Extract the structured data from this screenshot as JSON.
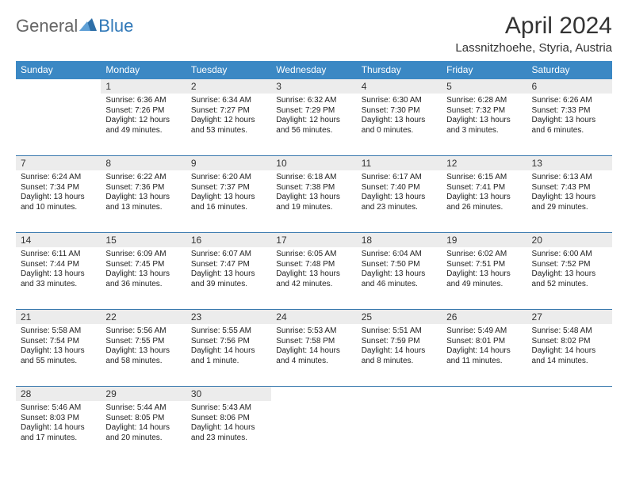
{
  "logo": {
    "text1": "General",
    "text2": "Blue"
  },
  "title": "April 2024",
  "location": "Lassnitzhoehe, Styria, Austria",
  "weekdays": [
    "Sunday",
    "Monday",
    "Tuesday",
    "Wednesday",
    "Thursday",
    "Friday",
    "Saturday"
  ],
  "colors": {
    "header_bg": "#3b88c4",
    "header_text": "#ffffff",
    "daynum_bg": "#ececec",
    "row_border": "#3b7aae",
    "body_text": "#222222"
  },
  "font": {
    "family": "Arial",
    "day_text_pt": 10,
    "header_pt": 12,
    "title_pt": 30,
    "location_pt": 15
  },
  "weeks": [
    [
      null,
      {
        "n": "1",
        "sr": "6:36 AM",
        "ss": "7:26 PM",
        "dl": "12 hours and 49 minutes."
      },
      {
        "n": "2",
        "sr": "6:34 AM",
        "ss": "7:27 PM",
        "dl": "12 hours and 53 minutes."
      },
      {
        "n": "3",
        "sr": "6:32 AM",
        "ss": "7:29 PM",
        "dl": "12 hours and 56 minutes."
      },
      {
        "n": "4",
        "sr": "6:30 AM",
        "ss": "7:30 PM",
        "dl": "13 hours and 0 minutes."
      },
      {
        "n": "5",
        "sr": "6:28 AM",
        "ss": "7:32 PM",
        "dl": "13 hours and 3 minutes."
      },
      {
        "n": "6",
        "sr": "6:26 AM",
        "ss": "7:33 PM",
        "dl": "13 hours and 6 minutes."
      }
    ],
    [
      {
        "n": "7",
        "sr": "6:24 AM",
        "ss": "7:34 PM",
        "dl": "13 hours and 10 minutes."
      },
      {
        "n": "8",
        "sr": "6:22 AM",
        "ss": "7:36 PM",
        "dl": "13 hours and 13 minutes."
      },
      {
        "n": "9",
        "sr": "6:20 AM",
        "ss": "7:37 PM",
        "dl": "13 hours and 16 minutes."
      },
      {
        "n": "10",
        "sr": "6:18 AM",
        "ss": "7:38 PM",
        "dl": "13 hours and 19 minutes."
      },
      {
        "n": "11",
        "sr": "6:17 AM",
        "ss": "7:40 PM",
        "dl": "13 hours and 23 minutes."
      },
      {
        "n": "12",
        "sr": "6:15 AM",
        "ss": "7:41 PM",
        "dl": "13 hours and 26 minutes."
      },
      {
        "n": "13",
        "sr": "6:13 AM",
        "ss": "7:43 PM",
        "dl": "13 hours and 29 minutes."
      }
    ],
    [
      {
        "n": "14",
        "sr": "6:11 AM",
        "ss": "7:44 PM",
        "dl": "13 hours and 33 minutes."
      },
      {
        "n": "15",
        "sr": "6:09 AM",
        "ss": "7:45 PM",
        "dl": "13 hours and 36 minutes."
      },
      {
        "n": "16",
        "sr": "6:07 AM",
        "ss": "7:47 PM",
        "dl": "13 hours and 39 minutes."
      },
      {
        "n": "17",
        "sr": "6:05 AM",
        "ss": "7:48 PM",
        "dl": "13 hours and 42 minutes."
      },
      {
        "n": "18",
        "sr": "6:04 AM",
        "ss": "7:50 PM",
        "dl": "13 hours and 46 minutes."
      },
      {
        "n": "19",
        "sr": "6:02 AM",
        "ss": "7:51 PM",
        "dl": "13 hours and 49 minutes."
      },
      {
        "n": "20",
        "sr": "6:00 AM",
        "ss": "7:52 PM",
        "dl": "13 hours and 52 minutes."
      }
    ],
    [
      {
        "n": "21",
        "sr": "5:58 AM",
        "ss": "7:54 PM",
        "dl": "13 hours and 55 minutes."
      },
      {
        "n": "22",
        "sr": "5:56 AM",
        "ss": "7:55 PM",
        "dl": "13 hours and 58 minutes."
      },
      {
        "n": "23",
        "sr": "5:55 AM",
        "ss": "7:56 PM",
        "dl": "14 hours and 1 minute."
      },
      {
        "n": "24",
        "sr": "5:53 AM",
        "ss": "7:58 PM",
        "dl": "14 hours and 4 minutes."
      },
      {
        "n": "25",
        "sr": "5:51 AM",
        "ss": "7:59 PM",
        "dl": "14 hours and 8 minutes."
      },
      {
        "n": "26",
        "sr": "5:49 AM",
        "ss": "8:01 PM",
        "dl": "14 hours and 11 minutes."
      },
      {
        "n": "27",
        "sr": "5:48 AM",
        "ss": "8:02 PM",
        "dl": "14 hours and 14 minutes."
      }
    ],
    [
      {
        "n": "28",
        "sr": "5:46 AM",
        "ss": "8:03 PM",
        "dl": "14 hours and 17 minutes."
      },
      {
        "n": "29",
        "sr": "5:44 AM",
        "ss": "8:05 PM",
        "dl": "14 hours and 20 minutes."
      },
      {
        "n": "30",
        "sr": "5:43 AM",
        "ss": "8:06 PM",
        "dl": "14 hours and 23 minutes."
      },
      null,
      null,
      null,
      null
    ]
  ]
}
